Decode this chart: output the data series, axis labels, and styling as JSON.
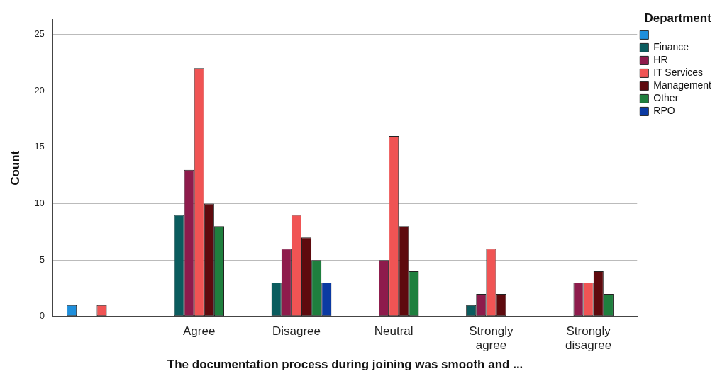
{
  "chart_data": {
    "type": "bar",
    "xlabel": "The documentation process during joining was smooth and ...",
    "ylabel": "Count",
    "legend_title": "Department",
    "legend": "top right",
    "grid": "y",
    "categories": [
      null,
      "Agree",
      "Disagree",
      "Neutral",
      "Strongly agree",
      "Strongly disagree"
    ],
    "ylim": [
      0,
      26.3
    ],
    "yticks": [
      0,
      5,
      10,
      15,
      20,
      25
    ],
    "series": [
      {
        "color": "#1e8fdc",
        "values": [
          1,
          0,
          0,
          0,
          0,
          0
        ]
      },
      {
        "name": "Finance",
        "color": "#0b5c5e",
        "values": [
          0,
          9,
          3,
          0,
          1,
          0
        ]
      },
      {
        "name": "HR",
        "color": "#8e1b4c",
        "values": [
          0,
          13,
          6,
          5,
          2,
          3
        ]
      },
      {
        "name": "IT Services",
        "color": "#f05454",
        "values": [
          1,
          22,
          9,
          16,
          6,
          3
        ]
      },
      {
        "name": "Management",
        "color": "#5e0a0e",
        "values": [
          0,
          10,
          7,
          8,
          2,
          4
        ]
      },
      {
        "name": "Other",
        "color": "#1f7f3e",
        "values": [
          0,
          8,
          5,
          4,
          0,
          2
        ]
      },
      {
        "name": "RPO",
        "color": "#0b3aa2",
        "values": [
          0,
          0,
          3,
          0,
          0,
          0
        ]
      }
    ]
  }
}
